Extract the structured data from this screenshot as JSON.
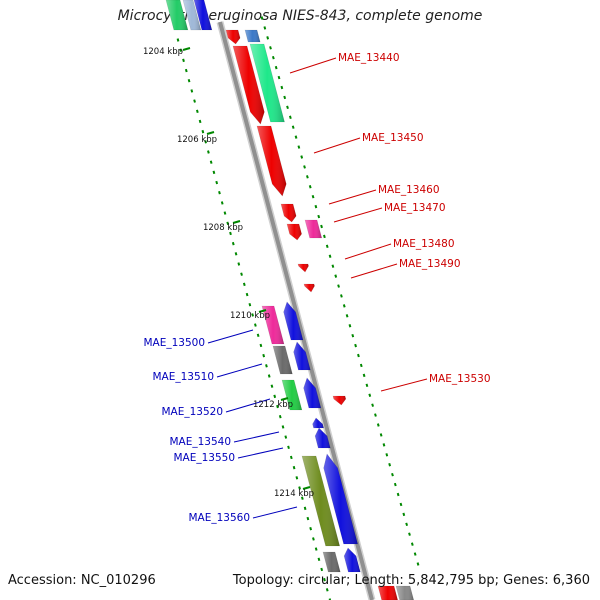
{
  "title": "Microcystis aeruginosa NIES-843, complete genome",
  "accession_label": "Accession: NC_010296",
  "topology_label": "Topology: circular; Length: 5,842,795 bp; Genes: 6,360",
  "colors": {
    "backbone": "#909090",
    "forward_label": "#cc0000",
    "reverse_label": "#0000bb",
    "tick": "#008800"
  },
  "kbp_ticks": [
    "1204 kbp",
    "1206 kbp",
    "1208 kbp",
    "1210 kbp",
    "1212 kbp",
    "1214 kbp"
  ],
  "gene_labels_forward": [
    "MAE_13440",
    "MAE_13450",
    "MAE_13460",
    "MAE_13470",
    "MAE_13480",
    "MAE_13490",
    "MAE_13530"
  ],
  "gene_labels_reverse": [
    "MAE_13500",
    "MAE_13510",
    "MAE_13520",
    "MAE_13540",
    "MAE_13550",
    "MAE_13560"
  ]
}
